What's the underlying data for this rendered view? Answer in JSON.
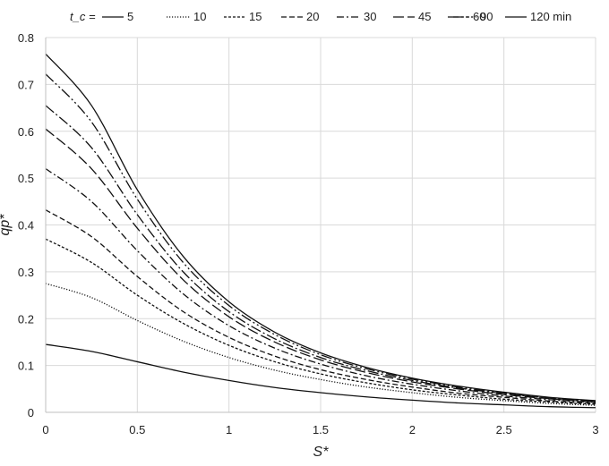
{
  "chart_data": {
    "type": "line",
    "title": "",
    "xlabel": "S*",
    "ylabel": "qp*",
    "xlim": [
      0,
      3
    ],
    "ylim": [
      0,
      0.8
    ],
    "x_ticks": [
      "0",
      "0.5",
      "1",
      "1.5",
      "2",
      "2.5",
      "3"
    ],
    "y_ticks": [
      "0",
      "0.1",
      "0.2",
      "0.3",
      "0.4",
      "0.5",
      "0.6",
      "0.7",
      "0.8"
    ],
    "grid": true,
    "legend_position": "top",
    "legend_title": "t_c =",
    "legend_unit": "min",
    "x": [
      0,
      0.25,
      0.5,
      0.75,
      1,
      1.25,
      1.5,
      1.75,
      2,
      2.25,
      2.5,
      2.75,
      3
    ],
    "series": [
      {
        "name": "5",
        "style": "solid",
        "values": [
          0.145,
          0.13,
          0.108,
          0.086,
          0.068,
          0.053,
          0.042,
          0.033,
          0.026,
          0.02,
          0.016,
          0.012,
          0.01
        ]
      },
      {
        "name": "10",
        "style": "dotted",
        "values": [
          0.275,
          0.245,
          0.196,
          0.152,
          0.117,
          0.09,
          0.07,
          0.054,
          0.042,
          0.032,
          0.025,
          0.019,
          0.015
        ]
      },
      {
        "name": "15",
        "style": "short-dash",
        "values": [
          0.37,
          0.32,
          0.25,
          0.19,
          0.143,
          0.108,
          0.082,
          0.063,
          0.048,
          0.037,
          0.028,
          0.022,
          0.017
        ]
      },
      {
        "name": "20",
        "style": "dash",
        "values": [
          0.432,
          0.375,
          0.29,
          0.215,
          0.16,
          0.12,
          0.091,
          0.07,
          0.054,
          0.041,
          0.032,
          0.024,
          0.019
        ]
      },
      {
        "name": "30",
        "style": "dash-dot",
        "values": [
          0.52,
          0.45,
          0.345,
          0.253,
          0.185,
          0.137,
          0.103,
          0.078,
          0.06,
          0.046,
          0.035,
          0.027,
          0.021
        ]
      },
      {
        "name": "45",
        "style": "long-dash",
        "values": [
          0.605,
          0.52,
          0.393,
          0.283,
          0.204,
          0.15,
          0.112,
          0.085,
          0.065,
          0.05,
          0.038,
          0.029,
          0.022
        ]
      },
      {
        "name": "60",
        "style": "long-dash-dot",
        "values": [
          0.655,
          0.565,
          0.422,
          0.3,
          0.215,
          0.157,
          0.117,
          0.089,
          0.068,
          0.052,
          0.04,
          0.03,
          0.023
        ]
      },
      {
        "name": "90",
        "style": "long-dash-dot-dot",
        "values": [
          0.722,
          0.62,
          0.455,
          0.32,
          0.228,
          0.166,
          0.123,
          0.093,
          0.071,
          0.054,
          0.041,
          0.031,
          0.024
        ]
      },
      {
        "name": "120",
        "style": "solid",
        "values": [
          0.765,
          0.655,
          0.475,
          0.333,
          0.236,
          0.171,
          0.127,
          0.096,
          0.073,
          0.056,
          0.043,
          0.032,
          0.025
        ]
      }
    ]
  }
}
